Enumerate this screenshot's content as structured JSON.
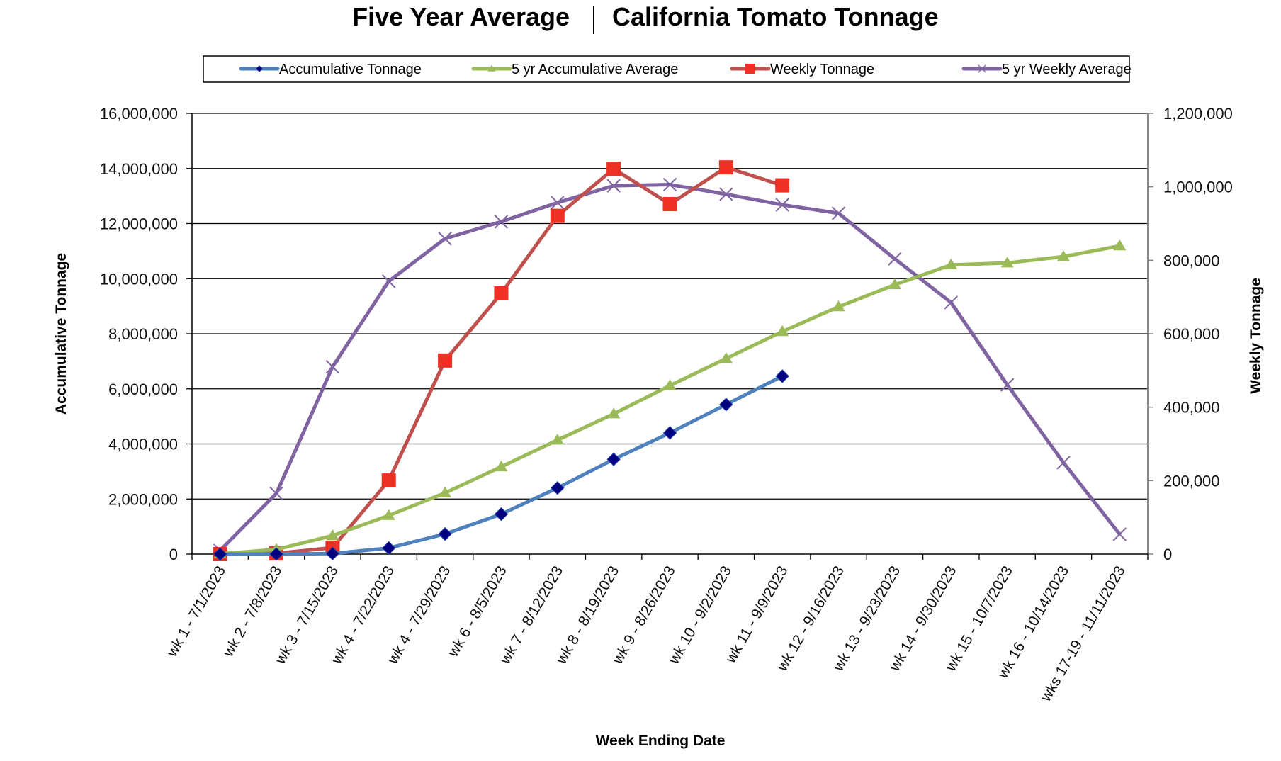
{
  "chart_data": {
    "type": "line",
    "title_left": "Five Year Average",
    "title_separator": "|",
    "title_right": "California Tomato Tonnage",
    "xlabel": "Week Ending Date",
    "ylabel_left": "Accumulative Tonnage",
    "ylabel_right": "Weekly Tonnage",
    "ylim_left": [
      0,
      16000000
    ],
    "ylim_right": [
      0,
      1200000
    ],
    "yticks_left": [
      "0",
      "2,000,000",
      "4,000,000",
      "6,000,000",
      "8,000,000",
      "10,000,000",
      "12,000,000",
      "14,000,000",
      "16,000,000"
    ],
    "yticks_right": [
      "0",
      "200,000",
      "400,000",
      "600,000",
      "800,000",
      "1,000,000",
      "1,200,000"
    ],
    "grid": true,
    "legend_position": "top",
    "categories": [
      "wk 1 - 7/1/2023",
      "wk 2 - 7/8/2023",
      "wk 3 - 7/15/2023",
      "wk 4 - 7/22/2023",
      "wk 4 - 7/29/2023",
      "wk 6 - 8/5/2023",
      "wk 7 - 8/12/2023",
      "wk 8 - 8/19/2023",
      "wk 9 - 8/26/2023",
      "wk 10 - 9/2/2023",
      "wk 11 - 9/9/2023",
      "wk 12 - 9/16/2023",
      "wk 13 - 9/23/2023",
      "wk 14 - 9/30/2023",
      "wk 15 - 10/7/2023",
      "wk 16 - 10/14/2023",
      "wks 17-19 - 11/11/2023"
    ],
    "series": [
      {
        "name": "Accumulative Tonnage",
        "axis": "left",
        "color": "#4F81BD",
        "marker": "diamond",
        "marker_color": "#000080",
        "values": [
          0,
          2000,
          20000,
          220000,
          730000,
          1450000,
          2400000,
          3440000,
          4400000,
          5430000,
          6460000,
          null,
          null,
          null,
          null,
          null,
          null
        ]
      },
      {
        "name": "5 yr Accumulative Average",
        "axis": "left",
        "color": "#9BBB59",
        "marker": "triangle",
        "marker_color": "#9BBB59",
        "values": [
          10000,
          170000,
          670000,
          1400000,
          2220000,
          3170000,
          4140000,
          5090000,
          6120000,
          7100000,
          8080000,
          8980000,
          9780000,
          10500000,
          10570000,
          10800000,
          11190000
        ]
      },
      {
        "name": "Weekly Tonnage",
        "axis": "right",
        "color": "#C0504D",
        "marker": "square",
        "marker_color": "#EE3124",
        "values": [
          0,
          2000,
          17500,
          200500,
          527000,
          710000,
          921000,
          1049000,
          953000,
          1053000,
          1004000,
          null,
          null,
          null,
          null,
          null,
          null
        ]
      },
      {
        "name": "5 yr Weekly Average",
        "axis": "right",
        "color": "#8064A2",
        "marker": "x",
        "marker_color": "#8064A2",
        "values": [
          10000,
          165000,
          510000,
          743000,
          859000,
          905000,
          957000,
          1003000,
          1006000,
          980000,
          951000,
          928000,
          804000,
          685000,
          461000,
          249000,
          54000
        ]
      }
    ]
  }
}
